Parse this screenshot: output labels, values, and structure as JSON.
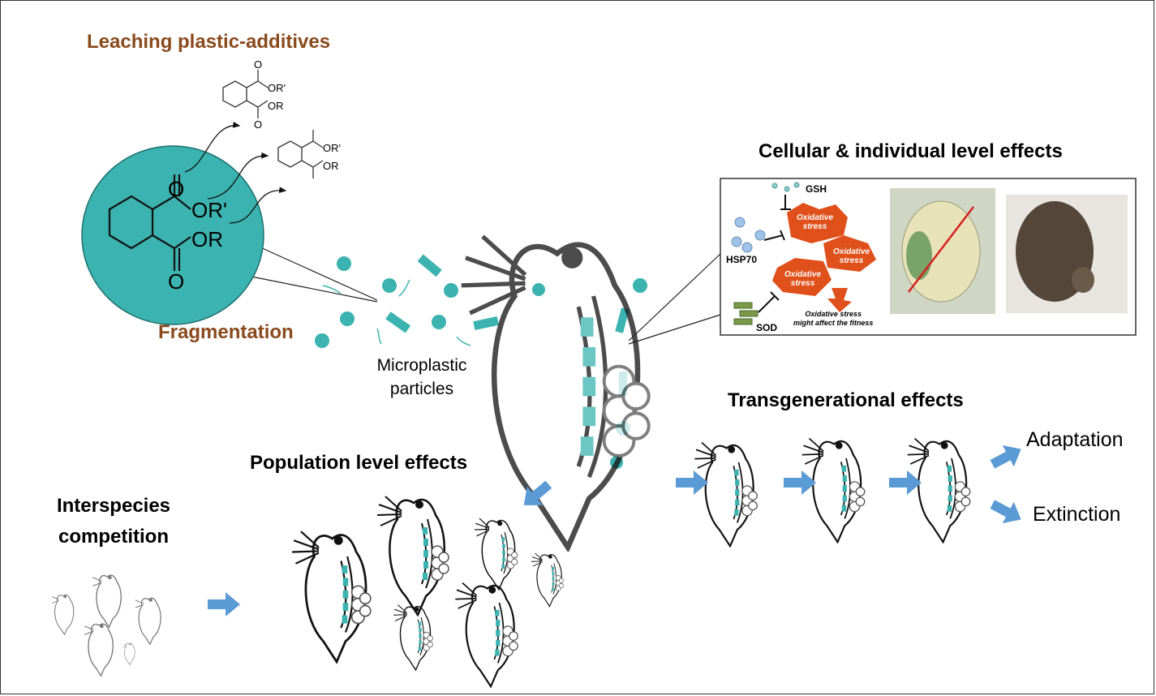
{
  "labels": {
    "leaching": "Leaching plastic-additives",
    "fragmentation": "Fragmentation",
    "microplastic_line1": "Microplastic",
    "microplastic_line2": "particles",
    "cellular": "Cellular & individual level effects",
    "transgenerational": "Transgenerational effects",
    "adaptation": "Adaptation",
    "extinction": "Extinction",
    "population": "Population level effects",
    "interspecies_line1": "Interspecies",
    "interspecies_line2": "competition"
  },
  "chemistry": {
    "o": "O",
    "or_prime": "OR'",
    "or": "OR"
  },
  "inset": {
    "gsh": "GSH",
    "hsp70": "HSP70",
    "sod": "SOD",
    "stress_line1": "Oxidative",
    "stress_line2": "stress",
    "caption_line1": "Oxidative stress",
    "caption_line2": "might affect the fitness"
  },
  "colors": {
    "teal": "#3bb3b0",
    "brown": "#8a4a1c",
    "arrow_blue": "#5b9bd5",
    "stress_orange": "#e0501a"
  }
}
